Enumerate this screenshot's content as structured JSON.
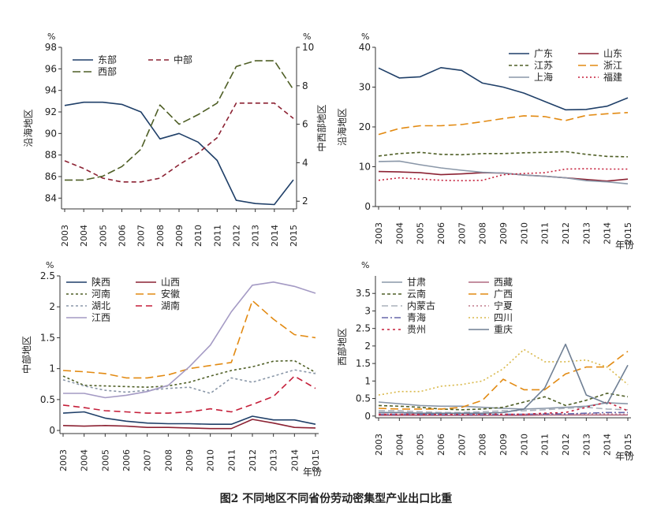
{
  "caption": "图2  不同地区不同省份劳动密集型产业出口比重",
  "chart_data": [
    {
      "id": "p1",
      "type": "line",
      "x": [
        2003,
        2004,
        2005,
        2006,
        2007,
        2008,
        2009,
        2010,
        2011,
        2012,
        2013,
        2014,
        2015
      ],
      "ylabel": "沿海地区",
      "y2label": "中西部地区",
      "xlabel": "",
      "unit": "%",
      "unit2": "%",
      "ylim": [
        83,
        98
      ],
      "y2lim": [
        1.6,
        10
      ],
      "yticks": [
        84,
        86,
        88,
        90,
        92,
        94,
        96,
        98
      ],
      "y2ticks": [
        2,
        4,
        6,
        8,
        10
      ],
      "series": [
        {
          "name": "东部",
          "axis": "left",
          "color": "#1f3f68",
          "dash": "",
          "values": [
            92.6,
            92.9,
            92.9,
            92.7,
            92.0,
            89.5,
            90.0,
            89.2,
            87.5,
            83.8,
            83.5,
            83.4,
            85.7
          ]
        },
        {
          "name": "中部",
          "axis": "right",
          "color": "#8c2233",
          "dash": "6,4",
          "values": [
            4.1,
            3.7,
            3.2,
            3.0,
            3.0,
            3.2,
            3.9,
            4.5,
            5.3,
            7.1,
            7.1,
            7.1,
            6.3
          ]
        },
        {
          "name": "西部",
          "axis": "right",
          "color": "#4f5f26",
          "dash": "10,4",
          "values": [
            3.1,
            3.1,
            3.3,
            3.8,
            4.7,
            7.0,
            6.0,
            6.5,
            7.1,
            9.0,
            9.3,
            9.3,
            7.8
          ]
        }
      ]
    },
    {
      "id": "p2",
      "type": "line",
      "x": [
        2003,
        2004,
        2005,
        2006,
        2007,
        2008,
        2009,
        2010,
        2011,
        2012,
        2013,
        2014,
        2015
      ],
      "ylabel": "沿海地区",
      "xlabel": "年份",
      "unit": "%",
      "ylim": [
        0,
        40
      ],
      "yticks": [
        0,
        10,
        20,
        30,
        40
      ],
      "series": [
        {
          "name": "广东",
          "color": "#1f3f68",
          "dash": "",
          "values": [
            34.8,
            32.3,
            32.6,
            34.9,
            34.2,
            31.0,
            30.0,
            28.5,
            26.4,
            24.3,
            24.4,
            25.2,
            27.3
          ]
        },
        {
          "name": "山东",
          "color": "#8c2233",
          "dash": "",
          "values": [
            8.8,
            8.7,
            8.5,
            8.0,
            8.2,
            8.5,
            8.4,
            7.9,
            7.6,
            7.2,
            6.8,
            6.4,
            6.9
          ]
        },
        {
          "name": "江苏",
          "color": "#4f5f26",
          "dash": "4,3",
          "values": [
            12.7,
            13.3,
            13.6,
            13.1,
            13.0,
            13.3,
            13.3,
            13.5,
            13.6,
            13.8,
            13.1,
            12.6,
            12.5
          ]
        },
        {
          "name": "浙江",
          "color": "#e28a12",
          "dash": "10,5",
          "values": [
            18.1,
            19.6,
            20.3,
            20.3,
            20.6,
            21.3,
            22.1,
            22.8,
            22.6,
            21.6,
            22.9,
            23.3,
            23.6
          ]
        },
        {
          "name": "上海",
          "color": "#8a97a8",
          "dash": "",
          "values": [
            11.3,
            11.4,
            10.5,
            9.7,
            9.1,
            8.6,
            8.4,
            7.9,
            7.6,
            7.2,
            6.5,
            6.2,
            5.7
          ]
        },
        {
          "name": "福建",
          "color": "#c51f3a",
          "dash": "2,3",
          "values": [
            6.6,
            7.2,
            6.9,
            6.6,
            6.5,
            6.6,
            8.0,
            8.3,
            8.5,
            9.4,
            9.5,
            9.4,
            9.4
          ]
        }
      ]
    },
    {
      "id": "p3",
      "type": "line",
      "x": [
        2003,
        2004,
        2005,
        2006,
        2007,
        2008,
        2009,
        2010,
        2011,
        2012,
        2013,
        2014,
        2015
      ],
      "ylabel": "中部地区",
      "xlabel": "年份",
      "unit": "%",
      "ylim": [
        -0.05,
        2.5
      ],
      "yticks": [
        0,
        0.5,
        1,
        1.5,
        2,
        2.5
      ],
      "series": [
        {
          "name": "陕西",
          "color": "#1f3f68",
          "dash": "",
          "values": [
            0.28,
            0.3,
            0.2,
            0.15,
            0.12,
            0.11,
            0.11,
            0.1,
            0.1,
            0.23,
            0.17,
            0.17,
            0.1
          ]
        },
        {
          "name": "山西",
          "color": "#8c2233",
          "dash": "",
          "values": [
            0.08,
            0.07,
            0.08,
            0.07,
            0.05,
            0.05,
            0.04,
            0.03,
            0.03,
            0.18,
            0.12,
            0.05,
            0.04
          ]
        },
        {
          "name": "河南",
          "color": "#4f5f26",
          "dash": "3,3",
          "values": [
            0.88,
            0.73,
            0.72,
            0.71,
            0.7,
            0.72,
            0.78,
            0.88,
            0.97,
            1.03,
            1.12,
            1.13,
            0.94
          ]
        },
        {
          "name": "安徽",
          "color": "#e28a12",
          "dash": "10,5",
          "values": [
            0.97,
            0.95,
            0.92,
            0.85,
            0.85,
            0.9,
            1.0,
            1.05,
            1.1,
            2.1,
            1.8,
            1.55,
            1.5
          ]
        },
        {
          "name": "湖北",
          "color": "#8a97a8",
          "dash": "3,3",
          "values": [
            0.82,
            0.72,
            0.65,
            0.62,
            0.65,
            0.68,
            0.7,
            0.6,
            0.85,
            0.78,
            0.88,
            0.98,
            0.92
          ]
        },
        {
          "name": "湖南",
          "color": "#c51f3a",
          "dash": "8,5",
          "values": [
            0.41,
            0.37,
            0.32,
            0.3,
            0.28,
            0.28,
            0.3,
            0.35,
            0.3,
            0.42,
            0.55,
            0.88,
            0.68
          ]
        },
        {
          "name": "江西",
          "color": "#a49ac4",
          "dash": "",
          "values": [
            0.6,
            0.6,
            0.53,
            0.57,
            0.63,
            0.73,
            1.03,
            1.38,
            1.92,
            2.35,
            2.4,
            2.33,
            2.22
          ]
        }
      ]
    },
    {
      "id": "p4",
      "type": "line",
      "x": [
        2003,
        2004,
        2005,
        2006,
        2007,
        2008,
        2009,
        2010,
        2011,
        2012,
        2013,
        2014,
        2015
      ],
      "ylabel": "西部地区",
      "xlabel": "年份",
      "unit": "%",
      "ylim": [
        -0.05,
        4
      ],
      "yticks": [
        0,
        0.5,
        1,
        1.5,
        2,
        2.5,
        3,
        3.5
      ],
      "series": [
        {
          "name": "甘肃",
          "color": "#8a97a8",
          "dash": "",
          "values": [
            0.4,
            0.35,
            0.3,
            0.28,
            0.28,
            0.25,
            0.22,
            0.2,
            0.22,
            0.25,
            0.28,
            0.38,
            0.35
          ]
        },
        {
          "name": "西藏",
          "color": "#b06a80",
          "dash": "",
          "values": [
            0.02,
            0.02,
            0.02,
            0.02,
            0.02,
            0.02,
            0.02,
            0.02,
            0.03,
            0.03,
            0.03,
            0.03,
            0.03
          ]
        },
        {
          "name": "云南",
          "color": "#4f5f26",
          "dash": "4,3",
          "values": [
            0.3,
            0.28,
            0.25,
            0.2,
            0.18,
            0.2,
            0.25,
            0.4,
            0.55,
            0.3,
            0.45,
            0.65,
            0.55
          ]
        },
        {
          "name": "广西",
          "color": "#e28a12",
          "dash": "10,5",
          "values": [
            0.22,
            0.2,
            0.2,
            0.2,
            0.25,
            0.45,
            1.05,
            0.75,
            0.75,
            1.2,
            1.4,
            1.4,
            1.85
          ]
        },
        {
          "name": "内蒙古",
          "color": "#aab0bc",
          "dash": "8,4",
          "values": [
            0.15,
            0.15,
            0.12,
            0.1,
            0.1,
            0.12,
            0.15,
            0.15,
            0.18,
            0.22,
            0.25,
            0.2,
            0.18
          ]
        },
        {
          "name": "宁夏",
          "color": "#c07a8c",
          "dash": "2,3",
          "values": [
            0.05,
            0.05,
            0.05,
            0.04,
            0.04,
            0.04,
            0.04,
            0.05,
            0.05,
            0.06,
            0.06,
            0.06,
            0.05
          ]
        },
        {
          "name": "青海",
          "color": "#6666aa",
          "dash": "8,3,2,3",
          "values": [
            0.05,
            0.05,
            0.05,
            0.04,
            0.04,
            0.04,
            0.05,
            0.05,
            0.06,
            0.06,
            0.08,
            0.1,
            0.1
          ]
        },
        {
          "name": "四川",
          "color": "#d9b84a",
          "dash": "2,3",
          "values": [
            0.6,
            0.7,
            0.7,
            0.85,
            0.9,
            1.0,
            1.35,
            1.9,
            1.55,
            1.55,
            1.6,
            1.4,
            0.9
          ]
        },
        {
          "name": "贵州",
          "color": "#c51f3a",
          "dash": "3,4",
          "values": [
            0.05,
            0.05,
            0.05,
            0.05,
            0.05,
            0.06,
            0.05,
            0.05,
            0.08,
            0.1,
            0.25,
            0.4,
            0.15
          ]
        },
        {
          "name": "重庆",
          "color": "#6f7f94",
          "dash": "",
          "values": [
            0.1,
            0.1,
            0.08,
            0.08,
            0.08,
            0.08,
            0.1,
            0.2,
            0.8,
            2.05,
            0.6,
            0.35,
            1.45
          ]
        }
      ]
    }
  ]
}
